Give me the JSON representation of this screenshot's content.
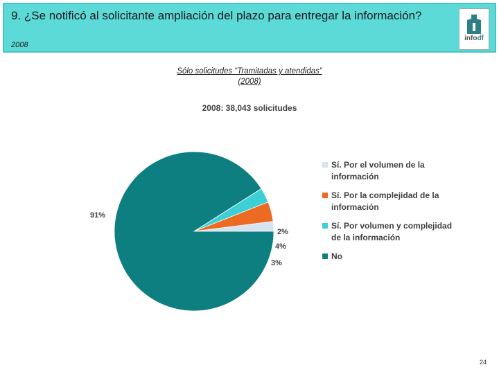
{
  "header": {
    "title": "9. ¿Se notificó al solicitante ampliación del plazo para entregar la información?",
    "year": "2008",
    "logo_text": "info",
    "logo_suffix": "df"
  },
  "subtitle": {
    "line1": "Sólo solicitudes “Tramitadas y atendidas”",
    "line2": "(2008)"
  },
  "page_number": "24",
  "chart_data": {
    "type": "pie",
    "title": "2008: 38,043 solicitudes",
    "slices": [
      {
        "label": "Sí. Por el volumen de la información",
        "value": 2,
        "display": "2%",
        "color": "#d6e3f0"
      },
      {
        "label": "Sí. Por la complejidad de la información",
        "value": 4,
        "display": "4%",
        "color": "#ec6a22"
      },
      {
        "label": "Sí. Por volumen y complejidad de la información",
        "value": 3,
        "display": "3%",
        "color": "#3ccfd6"
      },
      {
        "label": "No",
        "value": 91,
        "display": "91%",
        "color": "#0e7f80"
      }
    ],
    "legend_position": "right"
  }
}
